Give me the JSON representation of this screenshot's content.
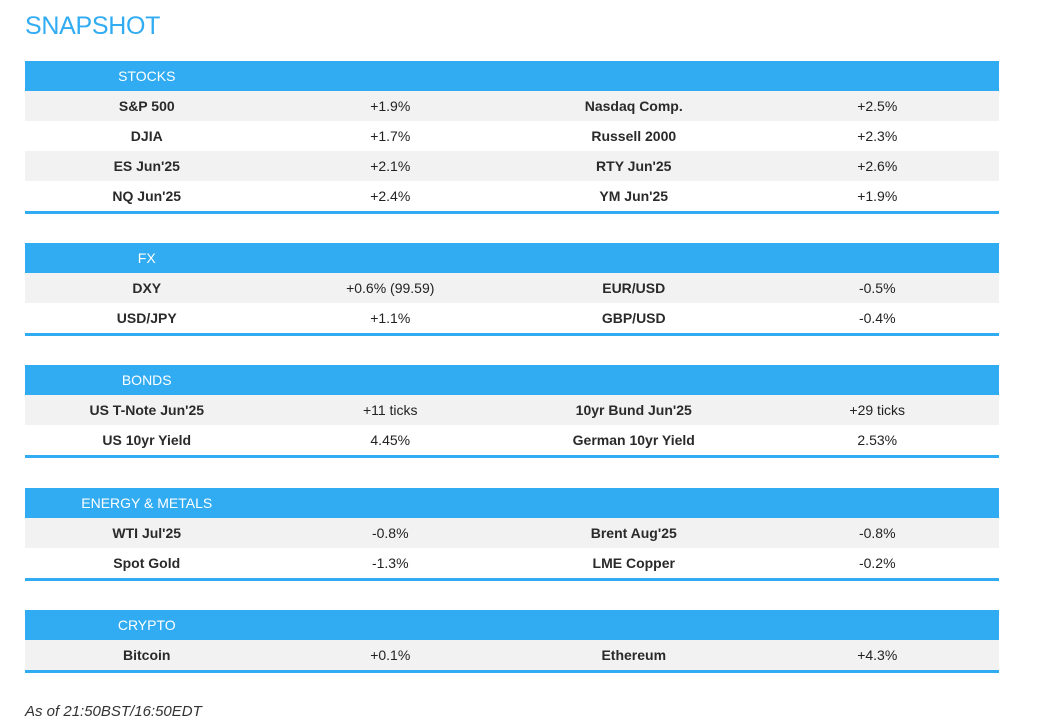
{
  "title": "SNAPSHOT",
  "sections": [
    {
      "label": "STOCKS",
      "rows": [
        [
          "S&P 500",
          "+1.9%",
          "Nasdaq Comp.",
          "+2.5%"
        ],
        [
          "DJIA",
          "+1.7%",
          "Russell 2000",
          "+2.3%"
        ],
        [
          "ES Jun'25",
          "+2.1%",
          "RTY Jun'25",
          "+2.6%"
        ],
        [
          "NQ Jun'25",
          "+2.4%",
          "YM Jun'25",
          "+1.9%"
        ]
      ]
    },
    {
      "label": "FX",
      "rows": [
        [
          "DXY",
          "+0.6% (99.59)",
          "EUR/USD",
          "-0.5%"
        ],
        [
          "USD/JPY",
          "+1.1%",
          "GBP/USD",
          "-0.4%"
        ]
      ]
    },
    {
      "label": "BONDS",
      "rows": [
        [
          "US T-Note Jun'25",
          "+11 ticks",
          "10yr Bund Jun'25",
          "+29 ticks"
        ],
        [
          "US 10yr Yield",
          "4.45%",
          "German 10yr Yield",
          "2.53%"
        ]
      ]
    },
    {
      "label": "ENERGY & METALS",
      "rows": [
        [
          "WTI Jul'25",
          "-0.8%",
          "Brent Aug'25",
          "-0.8%"
        ],
        [
          "Spot Gold",
          "-1.3%",
          "LME Copper",
          "-0.2%"
        ]
      ]
    },
    {
      "label": "CRYPTO",
      "rows": [
        [
          "Bitcoin",
          "+0.1%",
          "Ethereum",
          "+4.3%"
        ]
      ]
    }
  ],
  "footer": "As of 21:50BST/16:50EDT",
  "colors": {
    "accent": "#31acf2",
    "stripe": "#f2f2f2"
  }
}
